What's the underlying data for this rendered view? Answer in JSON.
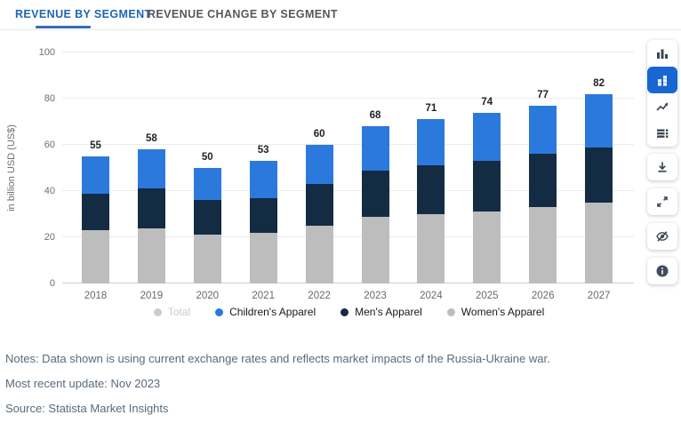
{
  "tabs": [
    {
      "label": "REVENUE BY SEGMENT",
      "active": true
    },
    {
      "label": "REVENUE CHANGE BY SEGMENT",
      "active": false
    }
  ],
  "chart_data": {
    "type": "bar",
    "variant": "stacked",
    "title": "",
    "ylabel": "in billion USD (US$)",
    "ylim": [
      0,
      100
    ],
    "yticks": [
      0,
      20,
      40,
      60,
      80,
      100
    ],
    "grid": "horizontal",
    "categories": [
      "2018",
      "2019",
      "2020",
      "2021",
      "2022",
      "2023",
      "2024",
      "2025",
      "2026",
      "2027"
    ],
    "series": [
      {
        "name": "Women's Apparel",
        "color": "#bdbdbd",
        "values": [
          23,
          24,
          21,
          22,
          25,
          29,
          30,
          31,
          33,
          35
        ]
      },
      {
        "name": "Men's Apparel",
        "color": "#142b44",
        "values": [
          16,
          17,
          15,
          15,
          18,
          20,
          21,
          22,
          23,
          24
        ]
      },
      {
        "name": "Children's Apparel",
        "color": "#2c79dd",
        "values": [
          16,
          17,
          14,
          16,
          17,
          19,
          20,
          21,
          21,
          23
        ]
      }
    ],
    "totals": [
      55,
      58,
      50,
      53,
      60,
      68,
      71,
      74,
      77,
      82
    ],
    "legend_position": "bottom",
    "legend": [
      {
        "label": "Total",
        "color": "#c9cdd2",
        "disabled": true
      },
      {
        "label": "Children's Apparel",
        "color": "#2c79dd",
        "disabled": false
      },
      {
        "label": "Men's Apparel",
        "color": "#142b44",
        "disabled": false
      },
      {
        "label": "Women's Apparel",
        "color": "#bdbdbd",
        "disabled": false
      }
    ]
  },
  "toolbar": {
    "icons": [
      {
        "name": "column-chart-icon",
        "active": false
      },
      {
        "name": "stacked-column-chart-icon",
        "active": true
      },
      {
        "name": "line-chart-icon",
        "active": false
      },
      {
        "name": "data-table-icon",
        "active": false
      },
      {
        "name": "download-icon",
        "active": false
      },
      {
        "name": "expand-icon",
        "active": false
      },
      {
        "name": "eye-off-icon",
        "active": false
      },
      {
        "name": "info-icon",
        "active": false
      }
    ],
    "accent_color": "#1866d2"
  },
  "notes": {
    "notes_line": "Notes: Data shown is using current exchange rates and reflects market impacts of the Russia-Ukraine war.",
    "update_line": "Most recent update: Nov 2023",
    "source_line": "Source: Statista Market Insights"
  }
}
